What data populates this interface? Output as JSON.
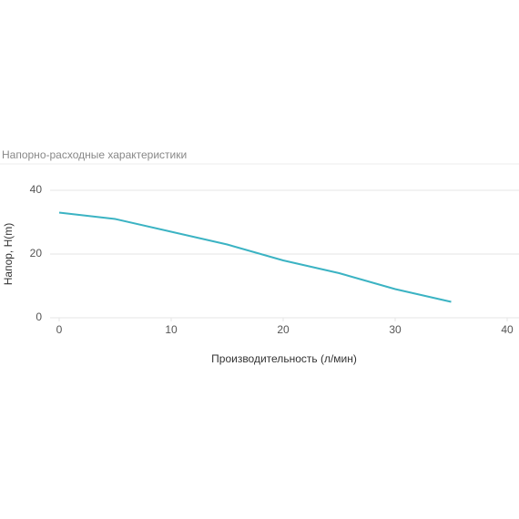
{
  "chart_data": {
    "type": "line",
    "title": "Напорно-расходные характеристики",
    "x_label": "Производительность (л/мин)",
    "y_label": "Напор, H(m)",
    "x": [
      0,
      5,
      10,
      15,
      20,
      25,
      30,
      35
    ],
    "series": [
      {
        "color": "#3bb3c3",
        "values": [
          33,
          31,
          27,
          23,
          18,
          14,
          9,
          5
        ]
      }
    ],
    "xlim": [
      0,
      40
    ],
    "xticks": [
      0,
      10,
      20,
      30,
      40
    ],
    "ylim": [
      0,
      40
    ],
    "yticks": [
      0,
      20,
      40
    ],
    "grid": true
  }
}
